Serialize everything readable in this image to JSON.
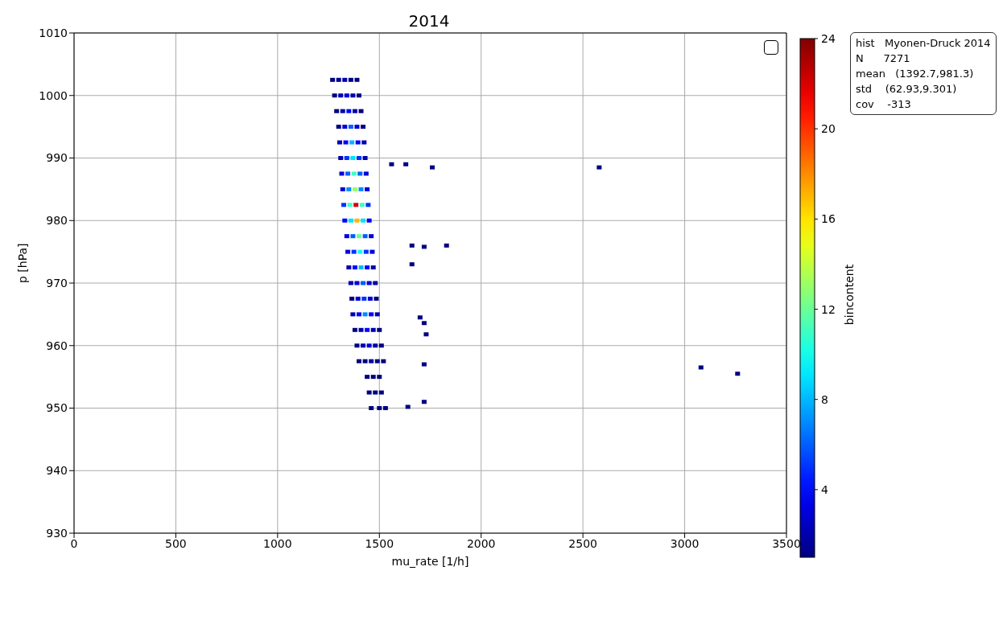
{
  "chart_data": {
    "type": "scatter",
    "title": "2014",
    "xlabel": "mu_rate [1/h]",
    "ylabel": "p [hPa]",
    "clabel": "bincontent",
    "x": [
      1270,
      1300,
      1330,
      1360,
      1390,
      1280,
      1310,
      1340,
      1370,
      1400,
      1290,
      1320,
      1350,
      1380,
      1410,
      1300,
      1330,
      1360,
      1390,
      1420,
      1305,
      1335,
      1365,
      1395,
      1425,
      1310,
      1340,
      1370,
      1400,
      1430,
      1315,
      1345,
      1375,
      1405,
      1435,
      1320,
      1350,
      1380,
      1410,
      1440,
      1325,
      1355,
      1385,
      1415,
      1445,
      1330,
      1360,
      1390,
      1420,
      1450,
      1340,
      1370,
      1400,
      1430,
      1460,
      1345,
      1375,
      1405,
      1435,
      1465,
      1350,
      1380,
      1410,
      1440,
      1470,
      1360,
      1390,
      1420,
      1450,
      1480,
      1365,
      1395,
      1425,
      1455,
      1485,
      1370,
      1400,
      1430,
      1460,
      1490,
      1380,
      1410,
      1440,
      1470,
      1500,
      1390,
      1420,
      1450,
      1480,
      1510,
      1400,
      1430,
      1460,
      1490,
      1520,
      1440,
      1470,
      1500,
      1450,
      1480,
      1510,
      1460,
      1500,
      1530,
      1560,
      1630,
      1760,
      2580,
      1660,
      1720,
      1830,
      1660,
      1700,
      1720,
      1730,
      1720,
      1720,
      3080,
      3260,
      1640
    ],
    "values": [
      1002.5,
      1002.5,
      1002.5,
      1002.5,
      1002.5,
      1000,
      1000,
      1000,
      1000,
      1000,
      997.5,
      997.5,
      997.5,
      997.5,
      997.5,
      995,
      995,
      995,
      995,
      995,
      992.5,
      992.5,
      992.5,
      992.5,
      992.5,
      990,
      990,
      990,
      990,
      990,
      987.5,
      987.5,
      987.5,
      987.5,
      987.5,
      985,
      985,
      985,
      985,
      985,
      982.5,
      982.5,
      982.5,
      982.5,
      982.5,
      980,
      980,
      980,
      980,
      980,
      977.5,
      977.5,
      977.5,
      977.5,
      977.5,
      975,
      975,
      975,
      975,
      975,
      972.5,
      972.5,
      972.5,
      972.5,
      972.5,
      970,
      970,
      970,
      970,
      970,
      967.5,
      967.5,
      967.5,
      967.5,
      967.5,
      965,
      965,
      965,
      965,
      965,
      962.5,
      962.5,
      962.5,
      962.5,
      962.5,
      960,
      960,
      960,
      960,
      960,
      957.5,
      957.5,
      957.5,
      957.5,
      957.5,
      955,
      955,
      955,
      952.5,
      952.5,
      952.5,
      950,
      950,
      950,
      989,
      989,
      988.5,
      988.5,
      976,
      975.8,
      976,
      973,
      964.5,
      963.6,
      961.8,
      957,
      951,
      956.5,
      955.5,
      950.2
    ],
    "cvalues": [
      1,
      1,
      2,
      1,
      1,
      1,
      2,
      3,
      2,
      1,
      1,
      2,
      4,
      2,
      1,
      1,
      3,
      6,
      3,
      1,
      2,
      4,
      8,
      4,
      2,
      2,
      5,
      9,
      5,
      2,
      3,
      6,
      11,
      6,
      3,
      3,
      7,
      13,
      7,
      3,
      5,
      11,
      22,
      11,
      5,
      4,
      9,
      17,
      9,
      4,
      3,
      6,
      12,
      6,
      3,
      3,
      5,
      10,
      5,
      3,
      2,
      4,
      8,
      4,
      2,
      2,
      3,
      6,
      3,
      2,
      1,
      3,
      5,
      3,
      1,
      2,
      4,
      7,
      4,
      2,
      1,
      2,
      4,
      2,
      1,
      1,
      2,
      3,
      2,
      1,
      1,
      1,
      2,
      1,
      1,
      1,
      1,
      1,
      1,
      1,
      1,
      1,
      1,
      1,
      1,
      1,
      1,
      1,
      1,
      1,
      1,
      1,
      1,
      1,
      1,
      1,
      1,
      1,
      1,
      1
    ],
    "xlim": [
      0,
      3500
    ],
    "xticks": [
      0,
      500,
      1000,
      1500,
      2000,
      2500,
      3000,
      3500
    ],
    "ylim": [
      930,
      1010
    ],
    "yticks": [
      930,
      940,
      950,
      960,
      970,
      980,
      990,
      1000,
      1010
    ],
    "clim": [
      1,
      24
    ],
    "cticks": [
      4,
      8,
      12,
      16,
      20,
      24
    ],
    "grid": true,
    "marker": "square",
    "annotations": [
      "hist   Myonen-Druck 2014",
      "N      7271",
      "mean   (1392.7,981.3)",
      "std    (62.93,9.301)",
      "cov    -313"
    ]
  }
}
